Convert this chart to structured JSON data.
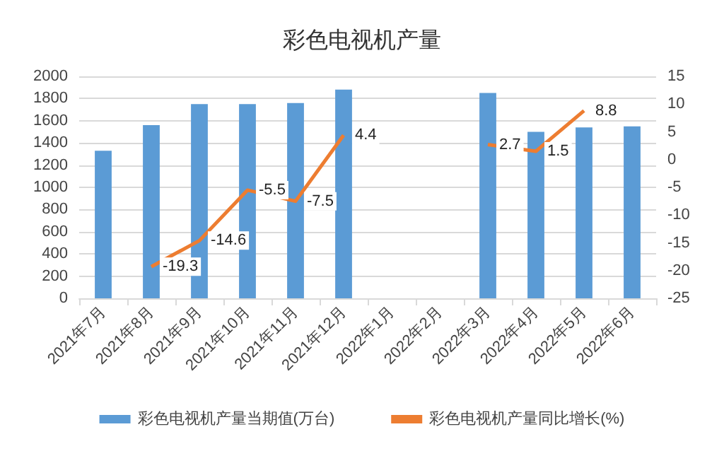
{
  "chart_data": {
    "type": "bar",
    "title": "彩色电视机产量",
    "categories": [
      "2021年7月",
      "2021年8月",
      "2021年9月",
      "2021年10月",
      "2021年11月",
      "2021年12月",
      "2022年1月",
      "2022年2月",
      "2022年3月",
      "2022年4月",
      "2022年5月",
      "2022年6月"
    ],
    "series": [
      {
        "name": "彩色电视机产量当期值(万台)",
        "color": "#5b9bd5",
        "values": [
          1330,
          1560,
          1750,
          1750,
          1760,
          1880,
          null,
          null,
          1850,
          1500,
          1540,
          1550
        ]
      },
      {
        "name": "彩色电视机产量同比增长(%)",
        "type": "line",
        "axis": "y2",
        "color": "#ed7d31",
        "marker": "none",
        "data_labels": true,
        "values": [
          null,
          -19.3,
          -14.6,
          -5.5,
          -7.5,
          4.4,
          null,
          null,
          2.7,
          1.5,
          8.8,
          null
        ]
      }
    ],
    "ylim": [
      0,
      2000
    ],
    "yticks": [
      0,
      200,
      400,
      600,
      800,
      1000,
      1200,
      1400,
      1600,
      1800,
      2000
    ],
    "y2lim": [
      -25,
      15
    ],
    "y2ticks": [
      -25,
      -20,
      -15,
      -10,
      -5,
      0,
      5,
      10,
      15
    ],
    "grid": "y",
    "legend": "bottom"
  }
}
